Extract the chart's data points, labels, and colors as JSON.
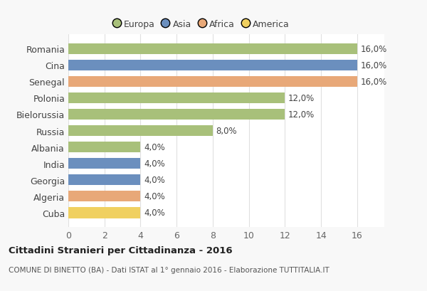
{
  "categories": [
    "Romania",
    "Cina",
    "Senegal",
    "Polonia",
    "Bielorussia",
    "Russia",
    "Albania",
    "India",
    "Georgia",
    "Algeria",
    "Cuba"
  ],
  "values": [
    16.0,
    16.0,
    16.0,
    12.0,
    12.0,
    8.0,
    4.0,
    4.0,
    4.0,
    4.0,
    4.0
  ],
  "colors": [
    "#a8c07a",
    "#6b8fbe",
    "#e8a878",
    "#a8c07a",
    "#a8c07a",
    "#a8c07a",
    "#a8c07a",
    "#6b8fbe",
    "#6b8fbe",
    "#e8a878",
    "#f0d060"
  ],
  "legend_labels": [
    "Europa",
    "Asia",
    "Africa",
    "America"
  ],
  "legend_colors": [
    "#a8c07a",
    "#6b8fbe",
    "#e8a878",
    "#f0d060"
  ],
  "title": "Cittadini Stranieri per Cittadinanza - 2016",
  "subtitle": "COMUNE DI BINETTO (BA) - Dati ISTAT al 1° gennaio 2016 - Elaborazione TUTTITALIA.IT",
  "xlim": [
    0,
    17.5
  ],
  "xticks": [
    0,
    2,
    4,
    6,
    8,
    10,
    12,
    14,
    16
  ],
  "background_color": "#f8f8f8",
  "bar_background": "#ffffff",
  "grid_color": "#e0e0e0"
}
